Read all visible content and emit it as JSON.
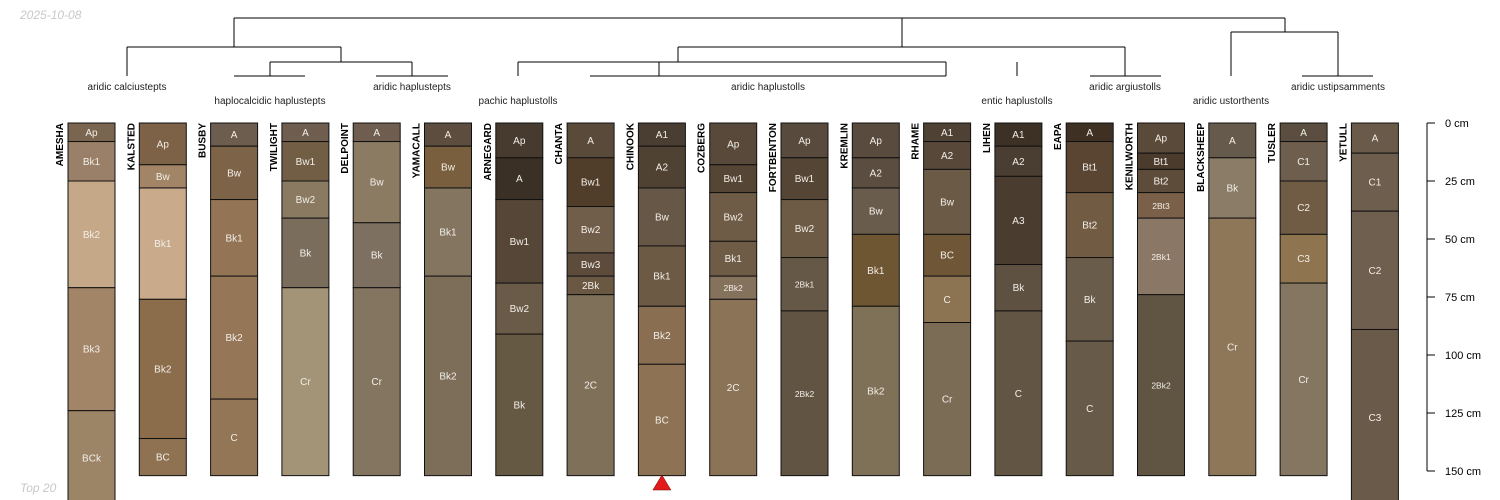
{
  "date": "2025-10-08",
  "footer": "Top 20",
  "depth_unit": "cm",
  "depth_ticks": [
    {
      "depth": 0,
      "label": "0 cm"
    },
    {
      "depth": 25,
      "label": "25 cm"
    },
    {
      "depth": 50,
      "label": "50 cm"
    },
    {
      "depth": 75,
      "label": "75 cm"
    },
    {
      "depth": 100,
      "label": "100 cm"
    },
    {
      "depth": 125,
      "label": "125 cm"
    },
    {
      "depth": 150,
      "label": "150 cm"
    }
  ],
  "group_labels": [
    "aridic calciustepts",
    "haplocalcidic haplustepts",
    "aridic haplustepts",
    "pachic haplustolls",
    "aridic haplustolls",
    "entic haplustolls",
    "aridic argiustolls",
    "aridic ustorthents",
    "aridic ustipsamments"
  ],
  "marker": {
    "profile": "CHINOOK",
    "color": "#e31a1c"
  },
  "profiles": [
    {
      "name": "AMESHA",
      "horizons": [
        {
          "name": "Ap",
          "top": 0,
          "bottom": 8,
          "color": "#7a6650"
        },
        {
          "name": "Bk1",
          "top": 8,
          "bottom": 25,
          "color": "#9a8068"
        },
        {
          "name": "Bk2",
          "top": 25,
          "bottom": 71,
          "color": "#c5a888"
        },
        {
          "name": "Bk3",
          "top": 71,
          "bottom": 124,
          "color": "#a28466"
        },
        {
          "name": "BCk",
          "top": 124,
          "bottom": 165,
          "color": "#9c8466"
        }
      ]
    },
    {
      "name": "KALSTED",
      "horizons": [
        {
          "name": "Ap",
          "top": 0,
          "bottom": 18,
          "color": "#7d6248"
        },
        {
          "name": "Bw",
          "top": 18,
          "bottom": 28,
          "color": "#a28466"
        },
        {
          "name": "Bk1",
          "top": 28,
          "bottom": 76,
          "color": "#c9aa8a"
        },
        {
          "name": "Bk2",
          "top": 76,
          "bottom": 136,
          "color": "#8b6d4c"
        },
        {
          "name": "BC",
          "top": 136,
          "bottom": 152,
          "color": "#8e7252"
        }
      ]
    },
    {
      "name": "BUSBY",
      "horizons": [
        {
          "name": "A",
          "top": 0,
          "bottom": 10,
          "color": "#6d5d4e"
        },
        {
          "name": "Bw",
          "top": 10,
          "bottom": 33,
          "color": "#7d6448"
        },
        {
          "name": "Bk1",
          "top": 33,
          "bottom": 66,
          "color": "#937455"
        },
        {
          "name": "Bk2",
          "top": 66,
          "bottom": 119,
          "color": "#957758"
        },
        {
          "name": "C",
          "top": 119,
          "bottom": 152,
          "color": "#937655"
        }
      ]
    },
    {
      "name": "TWILIGHT",
      "horizons": [
        {
          "name": "A",
          "top": 0,
          "bottom": 8,
          "color": "#6f5e4f"
        },
        {
          "name": "Bw1",
          "top": 8,
          "bottom": 25,
          "color": "#715e45"
        },
        {
          "name": "Bw2",
          "top": 25,
          "bottom": 41,
          "color": "#8a7a62"
        },
        {
          "name": "Bk",
          "top": 41,
          "bottom": 71,
          "color": "#7b6d5c"
        },
        {
          "name": "Cr",
          "top": 71,
          "bottom": 152,
          "color": "#a39478"
        }
      ]
    },
    {
      "name": "DELPOINT",
      "horizons": [
        {
          "name": "A",
          "top": 0,
          "bottom": 8,
          "color": "#6f5e4f"
        },
        {
          "name": "Bw",
          "top": 8,
          "bottom": 43,
          "color": "#8b7b63"
        },
        {
          "name": "Bk",
          "top": 43,
          "bottom": 71,
          "color": "#7e7060"
        },
        {
          "name": "Cr",
          "top": 71,
          "bottom": 152,
          "color": "#847560"
        }
      ]
    },
    {
      "name": "YAMACALL",
      "horizons": [
        {
          "name": "A",
          "top": 0,
          "bottom": 10,
          "color": "#5c4d3e"
        },
        {
          "name": "Bw",
          "top": 10,
          "bottom": 28,
          "color": "#7a5f3e"
        },
        {
          "name": "Bk1",
          "top": 28,
          "bottom": 66,
          "color": "#847560"
        },
        {
          "name": "Bk2",
          "top": 66,
          "bottom": 152,
          "color": "#7d6e59"
        }
      ]
    },
    {
      "name": "ARNEGARD",
      "horizons": [
        {
          "name": "Ap",
          "top": 0,
          "bottom": 15,
          "color": "#473a2e"
        },
        {
          "name": "A",
          "top": 15,
          "bottom": 33,
          "color": "#3b3025"
        },
        {
          "name": "Bw1",
          "top": 33,
          "bottom": 69,
          "color": "#554637"
        },
        {
          "name": "Bw2",
          "top": 69,
          "bottom": 91,
          "color": "#6a5a48"
        },
        {
          "name": "Bk",
          "top": 91,
          "bottom": 152,
          "color": "#665943"
        }
      ]
    },
    {
      "name": "CHANTA",
      "horizons": [
        {
          "name": "A",
          "top": 0,
          "bottom": 15,
          "color": "#5a4a3a"
        },
        {
          "name": "Bw1",
          "top": 15,
          "bottom": 36,
          "color": "#513e2a"
        },
        {
          "name": "Bw2",
          "top": 36,
          "bottom": 56,
          "color": "#715e4a"
        },
        {
          "name": "Bw3",
          "top": 56,
          "bottom": 66,
          "color": "#5d4c3b"
        },
        {
          "name": "2Bk",
          "top": 66,
          "bottom": 74,
          "color": "#6b5842"
        },
        {
          "name": "2C",
          "top": 74,
          "bottom": 152,
          "color": "#7f7159"
        }
      ]
    },
    {
      "name": "CHINOOK",
      "horizons": [
        {
          "name": "A1",
          "top": 0,
          "bottom": 10,
          "color": "#4a3d31"
        },
        {
          "name": "A2",
          "top": 10,
          "bottom": 28,
          "color": "#504233"
        },
        {
          "name": "Bw",
          "top": 28,
          "bottom": 53,
          "color": "#665747"
        },
        {
          "name": "Bk1",
          "top": 53,
          "bottom": 79,
          "color": "#6d5a44"
        },
        {
          "name": "Bk2",
          "top": 79,
          "bottom": 104,
          "color": "#8a6e52"
        },
        {
          "name": "BC",
          "top": 104,
          "bottom": 152,
          "color": "#8e7254"
        }
      ]
    },
    {
      "name": "COZBERG",
      "horizons": [
        {
          "name": "Ap",
          "top": 0,
          "bottom": 18,
          "color": "#58493a"
        },
        {
          "name": "Bw1",
          "top": 18,
          "bottom": 30,
          "color": "#554534"
        },
        {
          "name": "Bw2",
          "top": 30,
          "bottom": 51,
          "color": "#6e5c46"
        },
        {
          "name": "Bk1",
          "top": 51,
          "bottom": 66,
          "color": "#6e5c46"
        },
        {
          "name": "2Bk2",
          "top": 66,
          "bottom": 76,
          "color": "#85725c"
        },
        {
          "name": "2C",
          "top": 76,
          "bottom": 152,
          "color": "#8b7358"
        }
      ]
    },
    {
      "name": "FORTBENTON",
      "horizons": [
        {
          "name": "Ap",
          "top": 0,
          "bottom": 15,
          "color": "#584a3c"
        },
        {
          "name": "Bw1",
          "top": 15,
          "bottom": 33,
          "color": "#554534"
        },
        {
          "name": "Bw2",
          "top": 33,
          "bottom": 58,
          "color": "#6e5b45"
        },
        {
          "name": "2Bk1",
          "top": 58,
          "bottom": 81,
          "color": "#665846"
        },
        {
          "name": "2Bk2",
          "top": 81,
          "bottom": 152,
          "color": "#615443"
        }
      ]
    },
    {
      "name": "KREMLIN",
      "horizons": [
        {
          "name": "Ap",
          "top": 0,
          "bottom": 15,
          "color": "#594b3d"
        },
        {
          "name": "A2",
          "top": 15,
          "bottom": 28,
          "color": "#5b4d3f"
        },
        {
          "name": "Bw",
          "top": 28,
          "bottom": 48,
          "color": "#6a5c4d"
        },
        {
          "name": "Bk1",
          "top": 48,
          "bottom": 79,
          "color": "#6f5633"
        },
        {
          "name": "Bk2",
          "top": 79,
          "bottom": 152,
          "color": "#7f7058"
        }
      ]
    },
    {
      "name": "RHAME",
      "horizons": [
        {
          "name": "A1",
          "top": 0,
          "bottom": 8,
          "color": "#4f4133"
        },
        {
          "name": "A2",
          "top": 8,
          "bottom": 20,
          "color": "#584839"
        },
        {
          "name": "Bw",
          "top": 20,
          "bottom": 48,
          "color": "#6b5a46"
        },
        {
          "name": "BC",
          "top": 48,
          "bottom": 66,
          "color": "#6f5636"
        },
        {
          "name": "C",
          "top": 66,
          "bottom": 86,
          "color": "#8c7452"
        },
        {
          "name": "Cr",
          "top": 86,
          "bottom": 152,
          "color": "#7a6c55"
        }
      ]
    },
    {
      "name": "LIHEN",
      "horizons": [
        {
          "name": "A1",
          "top": 0,
          "bottom": 10,
          "color": "#3d3126"
        },
        {
          "name": "A2",
          "top": 10,
          "bottom": 23,
          "color": "#4a3d31"
        },
        {
          "name": "A3",
          "top": 23,
          "bottom": 61,
          "color": "#4a3d30"
        },
        {
          "name": "Bk",
          "top": 61,
          "bottom": 81,
          "color": "#5e5142"
        },
        {
          "name": "C",
          "top": 81,
          "bottom": 152,
          "color": "#635544"
        }
      ]
    },
    {
      "name": "EAPA",
      "horizons": [
        {
          "name": "A",
          "top": 0,
          "bottom": 8,
          "color": "#3e3124"
        },
        {
          "name": "Bt1",
          "top": 8,
          "bottom": 30,
          "color": "#5a4533"
        },
        {
          "name": "Bt2",
          "top": 30,
          "bottom": 58,
          "color": "#725b43"
        },
        {
          "name": "Bk",
          "top": 58,
          "bottom": 94,
          "color": "#6a5c4b"
        },
        {
          "name": "C",
          "top": 94,
          "bottom": 152,
          "color": "#675a48"
        }
      ]
    },
    {
      "name": "KENILWORTH",
      "horizons": [
        {
          "name": "Ap",
          "top": 0,
          "bottom": 13,
          "color": "#5a4a3a"
        },
        {
          "name": "Bt1",
          "top": 13,
          "bottom": 20,
          "color": "#4a3b2c"
        },
        {
          "name": "Bt2",
          "top": 20,
          "bottom": 30,
          "color": "#5e4c3a"
        },
        {
          "name": "2Bt3",
          "top": 30,
          "bottom": 41,
          "color": "#7a6048"
        },
        {
          "name": "2Bk1",
          "top": 41,
          "bottom": 74,
          "color": "#8a7765"
        },
        {
          "name": "2Bk2",
          "top": 74,
          "bottom": 152,
          "color": "#605442"
        }
      ]
    },
    {
      "name": "BLACKSHEEP",
      "horizons": [
        {
          "name": "A",
          "top": 0,
          "bottom": 15,
          "color": "#665a4c"
        },
        {
          "name": "Bk",
          "top": 15,
          "bottom": 41,
          "color": "#8a7c66"
        },
        {
          "name": "Cr",
          "top": 41,
          "bottom": 152,
          "color": "#8d7758"
        }
      ]
    },
    {
      "name": "TUSLER",
      "horizons": [
        {
          "name": "A",
          "top": 0,
          "bottom": 8,
          "color": "#5b4d3f"
        },
        {
          "name": "C1",
          "top": 8,
          "bottom": 25,
          "color": "#6d5e4e"
        },
        {
          "name": "C2",
          "top": 25,
          "bottom": 48,
          "color": "#705c45"
        },
        {
          "name": "C3",
          "top": 48,
          "bottom": 69,
          "color": "#8e7550"
        },
        {
          "name": "Cr",
          "top": 69,
          "bottom": 152,
          "color": "#847660"
        }
      ]
    },
    {
      "name": "YETULL",
      "horizons": [
        {
          "name": "A",
          "top": 0,
          "bottom": 13,
          "color": "#6a5a4a"
        },
        {
          "name": "C1",
          "top": 13,
          "bottom": 38,
          "color": "#6e5e4d"
        },
        {
          "name": "C2",
          "top": 38,
          "bottom": 89,
          "color": "#6f5f4e"
        },
        {
          "name": "C3",
          "top": 89,
          "bottom": 165,
          "color": "#6a5a4a"
        }
      ]
    }
  ]
}
